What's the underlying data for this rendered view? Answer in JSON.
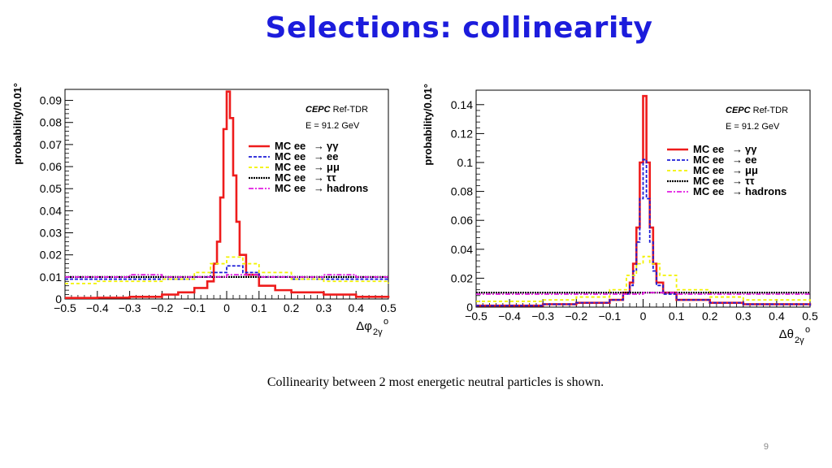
{
  "title": "Selections: collinearity",
  "caption": "Collinearity between 2 most energetic neutral particles is shown.",
  "page_number": "9",
  "chart_data": [
    {
      "type": "line",
      "xlabel": "Δφ",
      "xlabel_sub": "2γ",
      "xlabel_sup": "o",
      "ylabel": "probability/0.01°",
      "xlim": [
        -0.5,
        0.5
      ],
      "ylim": [
        0,
        0.095
      ],
      "xticks": [
        -0.5,
        -0.4,
        -0.3,
        -0.2,
        -0.1,
        0,
        0.1,
        0.2,
        0.3,
        0.4,
        0.5
      ],
      "xtick_labels": [
        "−0.5",
        "−0.4",
        "−0.3",
        "−0.2",
        "−0.1",
        "0",
        "0.1",
        "0.2",
        "0.3",
        "0.4",
        "0.5"
      ],
      "yticks": [
        0,
        0.01,
        0.02,
        0.03,
        0.04,
        0.05,
        0.06,
        0.07,
        0.08,
        0.09
      ],
      "ytick_labels": [
        "0",
        "0.01",
        "0.02",
        "0.03",
        "0.04",
        "0.05",
        "0.06",
        "0.07",
        "0.08",
        "0.09"
      ],
      "annotations": {
        "line1_em": "CEPC",
        "line1_rest": " Ref-TDR",
        "line2": "E = 91.2 GeV"
      },
      "legend_position": "top-right",
      "series": [
        {
          "name": "MC ee → γγ",
          "label_main": "MC ee",
          "label_arrow": "→",
          "label_final": "γγ",
          "color": "#ee1c1c",
          "dash": "",
          "width": 2.6,
          "x": [
            -0.5,
            -0.4,
            -0.3,
            -0.2,
            -0.15,
            -0.1,
            -0.06,
            -0.04,
            -0.03,
            -0.02,
            -0.01,
            0,
            0.01,
            0.02,
            0.03,
            0.04,
            0.06,
            0.1,
            0.15,
            0.2,
            0.3,
            0.4,
            0.5
          ],
          "values": [
            0.0005,
            0.0006,
            0.001,
            0.002,
            0.003,
            0.005,
            0.008,
            0.016,
            0.026,
            0.046,
            0.077,
            0.094,
            0.082,
            0.056,
            0.035,
            0.02,
            0.011,
            0.006,
            0.004,
            0.003,
            0.002,
            0.001,
            0.0005
          ]
        },
        {
          "name": "MC ee → ee",
          "label_main": "MC ee",
          "label_arrow": "→",
          "label_final": "ee",
          "color": "#1c1cd8",
          "dash": "4,2",
          "width": 1.8,
          "x": [
            -0.5,
            -0.4,
            -0.3,
            -0.2,
            -0.1,
            -0.05,
            0,
            0.05,
            0.1,
            0.2,
            0.3,
            0.4,
            0.5
          ],
          "values": [
            0.009,
            0.009,
            0.009,
            0.009,
            0.01,
            0.012,
            0.015,
            0.012,
            0.01,
            0.009,
            0.009,
            0.009,
            0.009
          ]
        },
        {
          "name": "MC ee → μμ",
          "label_main": "MC ee",
          "label_arrow": "→",
          "label_final": "μμ",
          "color": "#f2f200",
          "dash": "4,3",
          "width": 1.8,
          "x": [
            -0.5,
            -0.4,
            -0.3,
            -0.2,
            -0.1,
            -0.05,
            0,
            0.05,
            0.1,
            0.2,
            0.3,
            0.4,
            0.5
          ],
          "values": [
            0.007,
            0.008,
            0.008,
            0.009,
            0.012,
            0.016,
            0.019,
            0.016,
            0.012,
            0.009,
            0.008,
            0.008,
            0.007
          ]
        },
        {
          "name": "MC ee → ττ",
          "label_main": "MC ee",
          "label_arrow": "→",
          "label_final": "ττ",
          "color": "#000000",
          "dash": "2,1",
          "width": 2.2,
          "x": [
            -0.5,
            -0.4,
            -0.3,
            -0.2,
            -0.1,
            0,
            0.1,
            0.2,
            0.3,
            0.4,
            0.5
          ],
          "values": [
            0.01,
            0.01,
            0.01,
            0.01,
            0.01,
            0.01,
            0.01,
            0.01,
            0.01,
            0.01,
            0.01
          ]
        },
        {
          "name": "MC ee → hadrons",
          "label_main": "MC ee",
          "label_arrow": "→",
          "label_final": "hadrons",
          "color": "#e01ce0",
          "dash": "6,2,2,2",
          "width": 1.8,
          "x": [
            -0.5,
            -0.4,
            -0.3,
            -0.2,
            -0.1,
            0,
            0.1,
            0.2,
            0.3,
            0.4,
            0.5
          ],
          "values": [
            0.01,
            0.01,
            0.011,
            0.01,
            0.01,
            0.011,
            0.01,
            0.01,
            0.011,
            0.01,
            0.01
          ]
        }
      ]
    },
    {
      "type": "line",
      "xlabel": "Δθ",
      "xlabel_sub": "2γ",
      "xlabel_sup": "o",
      "ylabel": "probability/0.01°",
      "xlim": [
        -0.5,
        0.5
      ],
      "ylim": [
        0,
        0.15
      ],
      "xticks": [
        -0.5,
        -0.4,
        -0.3,
        -0.2,
        -0.1,
        0,
        0.1,
        0.2,
        0.3,
        0.4,
        0.5
      ],
      "xtick_labels": [
        "−0.5",
        "−0.4",
        "−0.3",
        "−0.2",
        "−0.1",
        "0",
        "0.1",
        "0.2",
        "0.3",
        "0.4",
        "0.5"
      ],
      "yticks": [
        0,
        0.02,
        0.04,
        0.06,
        0.08,
        0.1,
        0.12,
        0.14
      ],
      "ytick_labels": [
        "0",
        "0.02",
        "0.04",
        "0.06",
        "0.08",
        "0.1",
        "0.12",
        "0.14"
      ],
      "annotations": {
        "line1_em": "CEPC",
        "line1_rest": " Ref-TDR",
        "line2": "E = 91.2 GeV"
      },
      "legend_position": "top-right",
      "series": [
        {
          "name": "MC ee → γγ",
          "label_main": "MC ee",
          "label_arrow": "→",
          "label_final": "γγ",
          "color": "#ee1c1c",
          "dash": "",
          "width": 2.6,
          "x": [
            -0.5,
            -0.3,
            -0.2,
            -0.1,
            -0.06,
            -0.04,
            -0.03,
            -0.02,
            -0.01,
            0,
            0.01,
            0.02,
            0.03,
            0.04,
            0.06,
            0.1,
            0.2,
            0.3,
            0.5
          ],
          "values": [
            0.001,
            0.002,
            0.003,
            0.005,
            0.01,
            0.017,
            0.03,
            0.055,
            0.1,
            0.146,
            0.1,
            0.055,
            0.03,
            0.017,
            0.01,
            0.005,
            0.003,
            0.002,
            0.001
          ]
        },
        {
          "name": "MC ee → ee",
          "label_main": "MC ee",
          "label_arrow": "→",
          "label_final": "ee",
          "color": "#1c1cd8",
          "dash": "4,2",
          "width": 1.8,
          "x": [
            -0.5,
            -0.3,
            -0.2,
            -0.1,
            -0.06,
            -0.04,
            -0.03,
            -0.02,
            -0.01,
            0,
            0.01,
            0.02,
            0.03,
            0.04,
            0.06,
            0.1,
            0.2,
            0.3,
            0.5
          ],
          "values": [
            0.001,
            0.002,
            0.003,
            0.005,
            0.009,
            0.015,
            0.025,
            0.045,
            0.075,
            0.102,
            0.075,
            0.045,
            0.025,
            0.015,
            0.009,
            0.005,
            0.003,
            0.002,
            0.001
          ]
        },
        {
          "name": "MC ee → μμ",
          "label_main": "MC ee",
          "label_arrow": "→",
          "label_final": "μμ",
          "color": "#f2f200",
          "dash": "4,3",
          "width": 1.8,
          "x": [
            -0.5,
            -0.3,
            -0.2,
            -0.1,
            -0.05,
            -0.02,
            0,
            0.02,
            0.05,
            0.1,
            0.2,
            0.3,
            0.5
          ],
          "values": [
            0.004,
            0.005,
            0.007,
            0.012,
            0.022,
            0.03,
            0.035,
            0.03,
            0.022,
            0.012,
            0.007,
            0.005,
            0.004
          ]
        },
        {
          "name": "MC ee → ττ",
          "label_main": "MC ee",
          "label_arrow": "→",
          "label_final": "ττ",
          "color": "#000000",
          "dash": "2,1",
          "width": 2.2,
          "x": [
            -0.5,
            -0.4,
            -0.3,
            -0.2,
            -0.1,
            0,
            0.1,
            0.2,
            0.3,
            0.4,
            0.5
          ],
          "values": [
            0.01,
            0.01,
            0.01,
            0.01,
            0.01,
            0.01,
            0.01,
            0.01,
            0.01,
            0.01,
            0.01
          ]
        },
        {
          "name": "MC ee → hadrons",
          "label_main": "MC ee",
          "label_arrow": "→",
          "label_final": "hadrons",
          "color": "#e01ce0",
          "dash": "6,2,2,2",
          "width": 1.8,
          "x": [
            -0.5,
            -0.4,
            -0.3,
            -0.2,
            -0.1,
            0,
            0.1,
            0.2,
            0.3,
            0.4,
            0.5
          ],
          "values": [
            0.009,
            0.009,
            0.009,
            0.009,
            0.009,
            0.01,
            0.009,
            0.009,
            0.009,
            0.009,
            0.009
          ]
        }
      ]
    }
  ]
}
